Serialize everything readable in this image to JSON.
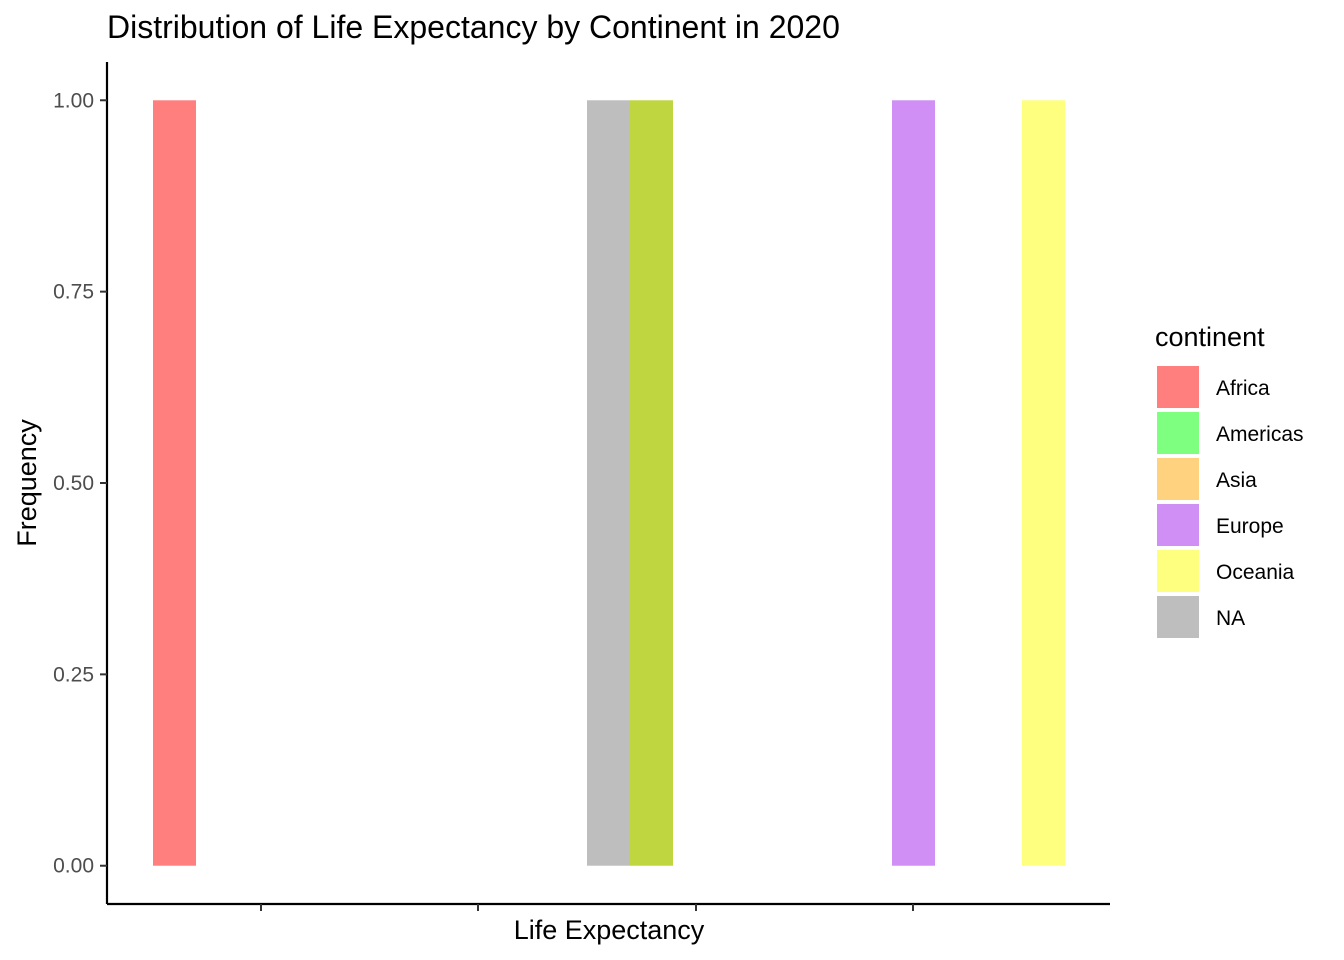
{
  "chart_data": {
    "type": "bar",
    "title": "Distribution of Life Expectancy by Continent in 2020",
    "xlabel": "Life Expectancy",
    "ylabel": "Frequency",
    "ylim": [
      -0.05,
      1.05
    ],
    "y_ticks": [
      0.0,
      0.25,
      0.5,
      0.75,
      1.0
    ],
    "y_tick_labels": [
      "0.00",
      "0.25",
      "0.50",
      "0.75",
      "1.00"
    ],
    "x_tick_labels_visible": false,
    "grid": false,
    "legend_position": "right",
    "legend_title": "continent",
    "legend": [
      {
        "name": "Africa",
        "color": "#FF7F7F"
      },
      {
        "name": "Americas",
        "color": "#7FFF7F"
      },
      {
        "name": "Asia",
        "color": "#FFD27F"
      },
      {
        "name": "Europe",
        "color": "#D08FF5"
      },
      {
        "name": "Oceania",
        "color": "#FFFF7F"
      },
      {
        "name": "NA",
        "color": "#BEBEBE"
      }
    ],
    "bars": [
      {
        "continent": "Africa",
        "value": 1,
        "color": "#FF7F7F"
      },
      {
        "continent": "NA",
        "value": 1,
        "color": "#BEBEBE"
      },
      {
        "continent": "Americas+Oceania overlap",
        "value": 1,
        "color": "#C0D641"
      },
      {
        "continent": "Europe",
        "value": 1,
        "color": "#D08FF5"
      },
      {
        "continent": "Oceania",
        "value": 1,
        "color": "#FFFF7F"
      }
    ]
  }
}
